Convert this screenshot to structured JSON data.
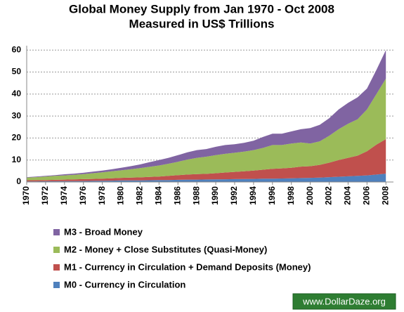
{
  "chart_data": {
    "type": "stacked_area",
    "title": "Global Money Supply from Jan 1970 - Oct 2008",
    "subtitle": "Measured in US$ Trillions",
    "watermark": "www.DollarDaze.org",
    "x": [
      1970,
      1971,
      1972,
      1973,
      1974,
      1975,
      1976,
      1977,
      1978,
      1979,
      1980,
      1981,
      1982,
      1983,
      1984,
      1985,
      1986,
      1987,
      1988,
      1989,
      1990,
      1991,
      1992,
      1993,
      1994,
      1995,
      1996,
      1997,
      1998,
      1999,
      2000,
      2001,
      2002,
      2003,
      2004,
      2005,
      2006,
      2007,
      2008
    ],
    "xlim": [
      1970,
      2008.8
    ],
    "xticks": [
      1970,
      1972,
      1974,
      1976,
      1978,
      1980,
      1982,
      1984,
      1986,
      1988,
      1990,
      1992,
      1994,
      1996,
      1998,
      2000,
      2002,
      2004,
      2006,
      2008
    ],
    "ylim": [
      0,
      62
    ],
    "yticks": [
      0,
      10,
      20,
      30,
      40,
      50,
      60
    ],
    "grid": true,
    "legend": "bottom",
    "series": [
      {
        "name": "M0 - Currency in Circulation",
        "color": "#4f81bd",
        "values": [
          0.3,
          0.3,
          0.35,
          0.35,
          0.4,
          0.4,
          0.45,
          0.5,
          0.55,
          0.6,
          0.7,
          0.7,
          0.75,
          0.8,
          0.85,
          0.9,
          1.0,
          1.1,
          1.1,
          1.15,
          1.2,
          1.25,
          1.3,
          1.35,
          1.4,
          1.5,
          1.55,
          1.6,
          1.7,
          1.8,
          1.9,
          2.0,
          2.2,
          2.4,
          2.6,
          2.8,
          3.0,
          3.4,
          3.8
        ]
      },
      {
        "name": "M1 - Currency in Circulation + Demand Deposits (Money)",
        "color": "#c0504d",
        "values": [
          0.5,
          0.55,
          0.55,
          0.65,
          0.7,
          0.8,
          0.85,
          0.9,
          0.95,
          1.1,
          1.2,
          1.3,
          1.35,
          1.5,
          1.65,
          1.9,
          2.1,
          2.3,
          2.5,
          2.55,
          2.8,
          3.05,
          3.3,
          3.55,
          3.8,
          4.1,
          4.45,
          4.6,
          4.8,
          5.2,
          5.3,
          5.8,
          6.6,
          7.6,
          8.4,
          9.2,
          11.0,
          13.6,
          15.7
        ]
      },
      {
        "name": "M2 - Money + Close Substitutes (Quasi-Money)",
        "color": "#9bbb59",
        "values": [
          1.2,
          1.35,
          1.6,
          1.8,
          1.9,
          2.1,
          2.3,
          2.6,
          2.9,
          3.2,
          3.4,
          3.8,
          4.2,
          4.6,
          5.0,
          5.5,
          6.1,
          6.8,
          7.4,
          7.8,
          8.2,
          8.5,
          8.7,
          8.9,
          9.3,
          9.9,
          10.8,
          10.6,
          11.0,
          11.0,
          10.3,
          10.7,
          12.2,
          14.0,
          15.5,
          16.5,
          19.0,
          23.0,
          27.5
        ]
      },
      {
        "name": "M3 - Broad Money",
        "color": "#8064a2",
        "values": [
          0.2,
          0.3,
          0.3,
          0.3,
          0.5,
          0.5,
          0.6,
          0.7,
          0.8,
          0.9,
          1.2,
          1.4,
          1.7,
          2.1,
          2.5,
          2.7,
          3.0,
          3.3,
          3.5,
          3.5,
          3.8,
          4.0,
          3.9,
          4.0,
          4.3,
          5.0,
          5.2,
          5.2,
          5.5,
          6.0,
          7.0,
          7.5,
          8.0,
          9.0,
          9.5,
          10.0,
          9.5,
          11.0,
          13.0
        ]
      }
    ]
  }
}
